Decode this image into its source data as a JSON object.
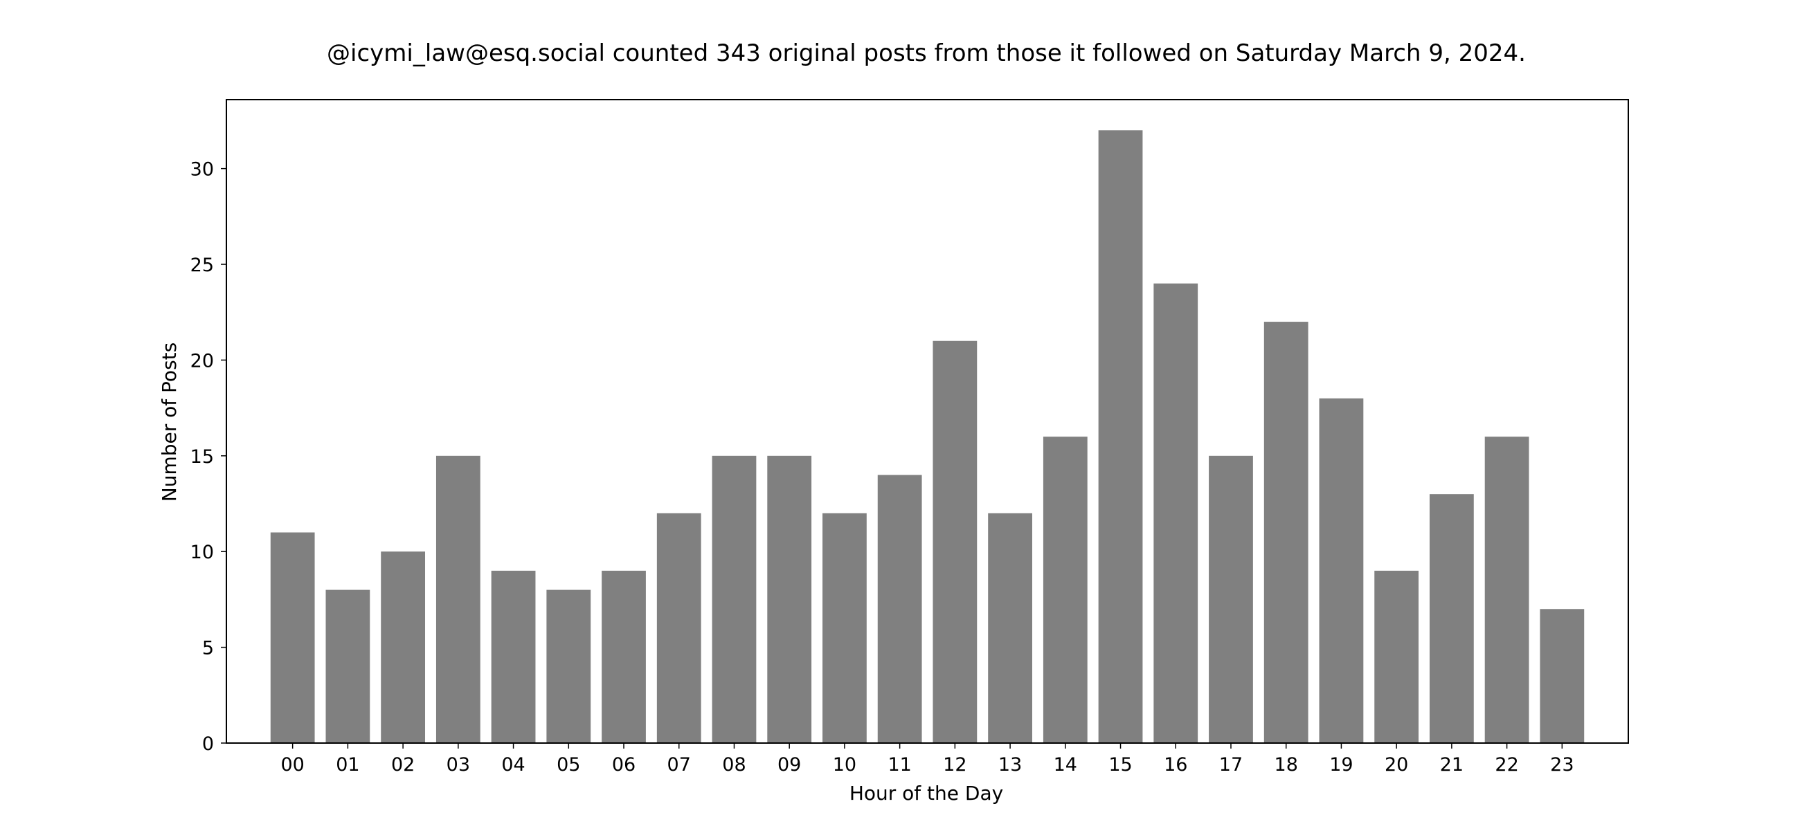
{
  "chart_data": {
    "type": "bar",
    "title": "@icymi_law@esq.social counted 343 original posts from those it followed on Saturday March 9, 2024.",
    "xlabel": "Hour of the Day",
    "ylabel": "Number of Posts",
    "categories": [
      "00",
      "01",
      "02",
      "03",
      "04",
      "05",
      "06",
      "07",
      "08",
      "09",
      "10",
      "11",
      "12",
      "13",
      "14",
      "15",
      "16",
      "17",
      "18",
      "19",
      "20",
      "21",
      "22",
      "23"
    ],
    "values": [
      11,
      8,
      10,
      15,
      9,
      8,
      9,
      12,
      15,
      15,
      12,
      14,
      21,
      12,
      16,
      32,
      24,
      15,
      22,
      18,
      9,
      13,
      16,
      7
    ],
    "ylim": [
      0,
      33.6
    ],
    "yticks": [
      0,
      5,
      10,
      15,
      20,
      25,
      30
    ],
    "grid": false,
    "bar_color": "#808080",
    "axes_color": "#000000",
    "background": "#ffffff"
  }
}
